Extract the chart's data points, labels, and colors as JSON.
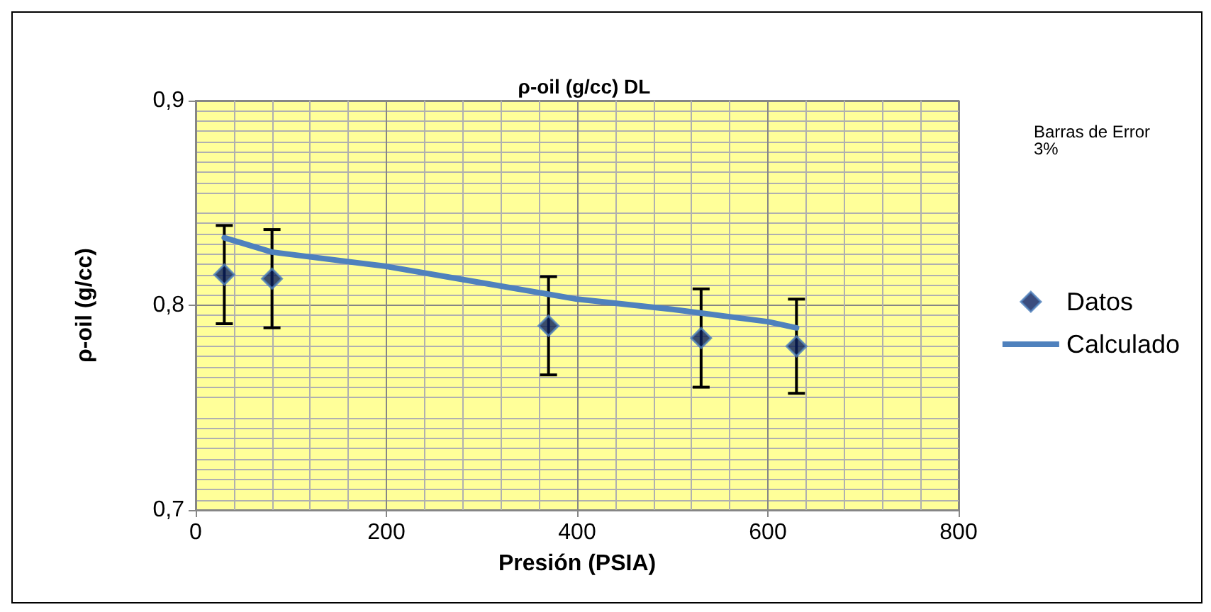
{
  "chart_data": {
    "type": "scatter",
    "title": "ρ-oil (g/cc) DL",
    "xlabel": "Presión (PSIA)",
    "ylabel": "ρ-oil (g/cc)",
    "annotations": [
      "Barras de Error 3%"
    ],
    "xlim": [
      0,
      800
    ],
    "xticks": [
      0,
      200,
      400,
      600,
      800
    ],
    "ylim": [
      0.7,
      0.9
    ],
    "yticks": [
      {
        "value": 0.7,
        "label": "0,7"
      },
      {
        "value": 0.8,
        "label": "0,8"
      },
      {
        "value": 0.9,
        "label": "0,9"
      }
    ],
    "grid": true,
    "legend": "right",
    "marker": "diamond",
    "series": [
      {
        "name": "Datos",
        "color": "#0a1f5c",
        "x": [
          30,
          80,
          370,
          530,
          630
        ],
        "values": [
          0.815,
          0.813,
          0.79,
          0.784,
          0.78
        ],
        "errors": [
          0.024,
          0.024,
          0.024,
          0.024,
          0.023
        ]
      },
      {
        "name": "Calculado",
        "type": "line",
        "color": "#4f81bd",
        "marker": "none",
        "x": [
          30,
          80,
          200,
          300,
          400,
          500,
          600,
          630
        ],
        "values": [
          0.833,
          0.826,
          0.819,
          0.811,
          0.803,
          0.798,
          0.792,
          0.789
        ]
      }
    ]
  }
}
